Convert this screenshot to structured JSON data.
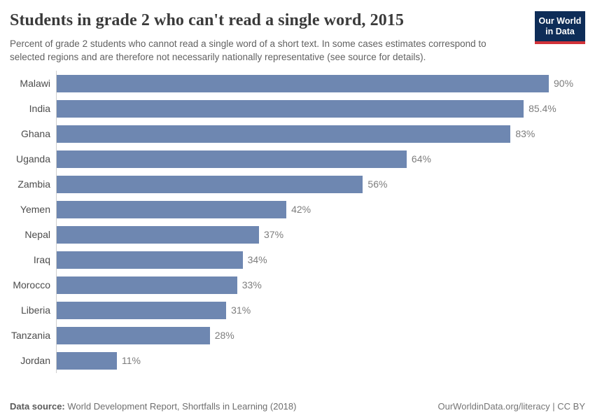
{
  "header": {
    "title": "Students in grade 2 who can't read a single word, 2015",
    "subtitle": "Percent of grade 2 students who cannot read a single word of a short text. In some cases estimates correspond to selected regions and are therefore not necessarily nationally representative (see source for details).",
    "logo": {
      "line1": "Our World",
      "line2": "in Data"
    }
  },
  "chart_data": {
    "type": "bar",
    "orientation": "horizontal",
    "title": "Students in grade 2 who can't read a single word, 2015",
    "categories": [
      "Malawi",
      "India",
      "Ghana",
      "Uganda",
      "Zambia",
      "Yemen",
      "Nepal",
      "Iraq",
      "Morocco",
      "Liberia",
      "Tanzania",
      "Jordan"
    ],
    "values": [
      90,
      85.4,
      83,
      64,
      56,
      42,
      37,
      34,
      33,
      31,
      28,
      11
    ],
    "value_labels": [
      "90%",
      "85.4%",
      "83%",
      "64%",
      "56%",
      "42%",
      "37%",
      "34%",
      "33%",
      "31%",
      "28%",
      "11%"
    ],
    "unit": "%",
    "xlim": [
      0,
      90
    ],
    "grid": false,
    "legend": "none"
  },
  "footer": {
    "source_label": "Data source:",
    "source_text": "World Development Report, Shortfalls in Learning (2018)",
    "credit": "OurWorldinData.org/literacy | CC BY"
  },
  "colors": {
    "bar": "#6e87b1",
    "axis_line": "#cfcfcf",
    "logo_bg": "#0e2d58",
    "logo_accent": "#d13239",
    "title_text": "#3a3a3a",
    "subtitle_text": "#616161",
    "value_label_text": "#7d7d7d"
  }
}
